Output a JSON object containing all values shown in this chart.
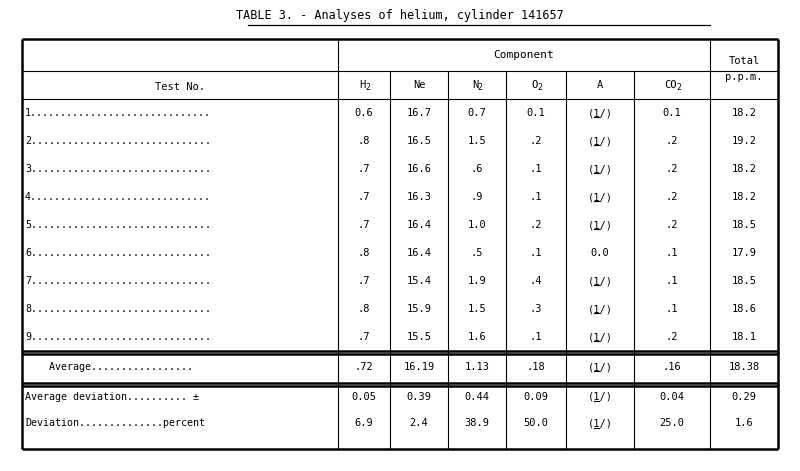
{
  "title": "TABLE 3. - Analyses of helium, cylinder 141657",
  "underline_start": "Analyses",
  "rows": [
    [
      "1..............................",
      "0.6",
      "16.7",
      "0.7",
      "0.1",
      "(1/)",
      "0.1",
      "18.2"
    ],
    [
      "2..............................",
      ".8",
      "16.5",
      "1.5",
      ".2",
      "(1/)",
      ".2",
      "19.2"
    ],
    [
      "3..............................",
      ".7",
      "16.6",
      ".6",
      ".1",
      "(1/)",
      ".2",
      "18.2"
    ],
    [
      "4..............................",
      ".7",
      "16.3",
      ".9",
      ".1",
      "(1/)",
      ".2",
      "18.2"
    ],
    [
      "5..............................",
      ".7",
      "16.4",
      "1.0",
      ".2",
      "(1/)",
      ".2",
      "18.5"
    ],
    [
      "6..............................",
      ".8",
      "16.4",
      ".5",
      ".1",
      "0.0",
      ".1",
      "17.9"
    ],
    [
      "7..............................",
      ".7",
      "15.4",
      "1.9",
      ".4",
      "(1/)",
      ".1",
      "18.5"
    ],
    [
      "8..............................",
      ".8",
      "15.9",
      "1.5",
      ".3",
      "(1/)",
      ".1",
      "18.6"
    ],
    [
      "9..............................",
      ".7",
      "15.5",
      "1.6",
      ".1",
      "(1/)",
      ".2",
      "18.1"
    ]
  ],
  "average_row": [
    "    Average.................",
    ".72",
    "16.19",
    "1.13",
    ".18",
    "(1/)",
    ".16",
    "18.38"
  ],
  "footer_rows": [
    [
      "Average deviation.......... ±",
      "0.05",
      "0.39",
      "0.44",
      "0.09",
      "(1/)",
      "0.04",
      "0.29"
    ],
    [
      "Deviation..............percent",
      "6.9",
      "2.4",
      "38.9",
      "50.0",
      "(1/)",
      "25.0",
      "1.6"
    ]
  ],
  "bg_color": "#ffffff",
  "lw_thick": 1.8,
  "lw_thin": 0.8,
  "font_size": 7.5,
  "title_font_size": 8.5
}
